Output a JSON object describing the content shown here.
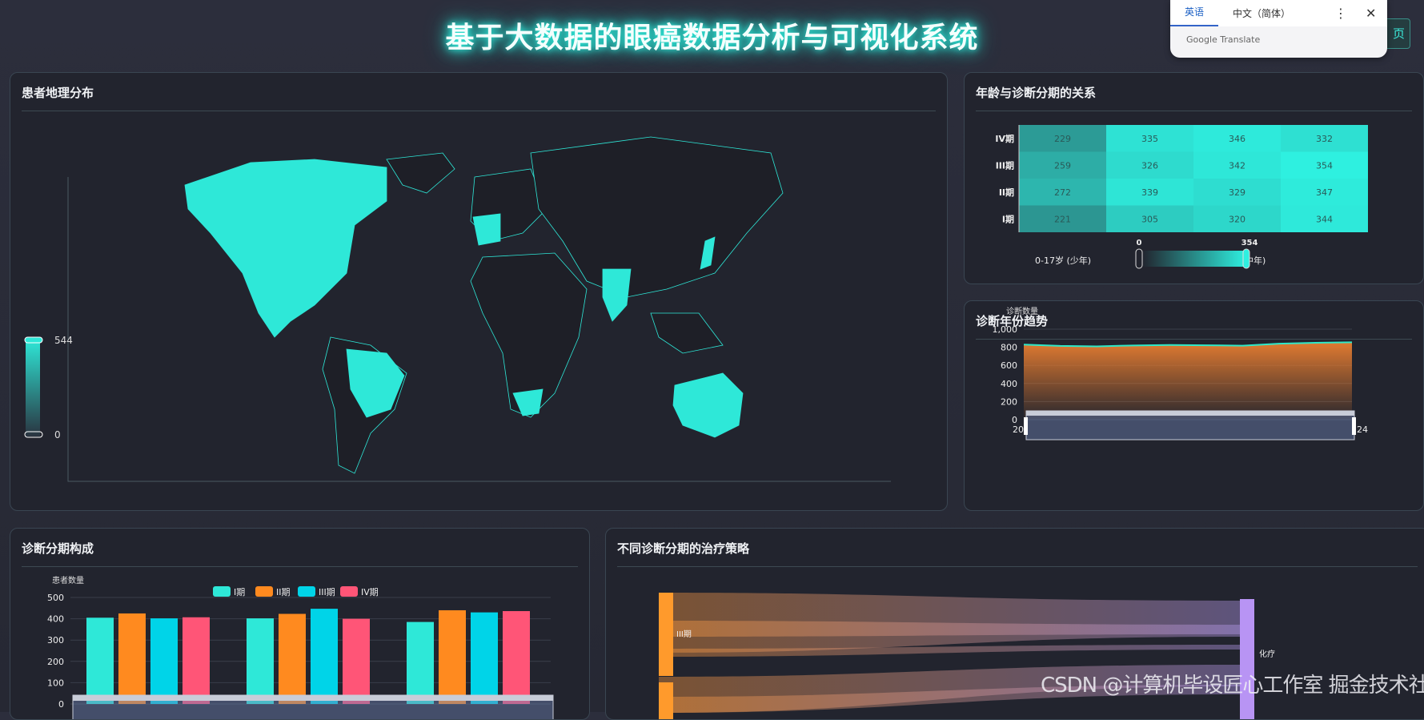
{
  "header": {
    "title": "基于大数据的眼癌数据分析与可视化系统",
    "home_button": "页"
  },
  "translate_popup": {
    "tabs": [
      "英语",
      "中文（简体）"
    ],
    "brand": "Google Translate",
    "more_icon": "more-vert-icon",
    "close_icon": "close-icon"
  },
  "panels": {
    "map": {
      "title": "患者地理分布",
      "visual_map": {
        "max": "544",
        "min": "0"
      },
      "colors": {
        "high": "#2ee8d8",
        "low": "#2a3a44"
      }
    },
    "heatmap": {
      "title": "年龄与诊断分期的关系",
      "y_labels": [
        "IV期",
        "III期",
        "II期",
        "I期"
      ],
      "x_labels_visible": [
        "0-17岁 (少年)",
        "中年)"
      ],
      "visual_map": {
        "min": "0",
        "max": "354"
      }
    },
    "trend": {
      "title": "诊断年份趋势",
      "ylabel": "诊断数量",
      "zoom_start": "20",
      "zoom_end": "24"
    },
    "bars": {
      "title": "诊断分期构成",
      "ylabel": "患者数量"
    },
    "sankey": {
      "title": "不同诊断分期的治疗策略",
      "nodes": [
        "III期",
        "化疗"
      ]
    }
  },
  "chart_data": [
    {
      "type": "heatmap",
      "rows": [
        "IV期",
        "III期",
        "II期",
        "I期"
      ],
      "values": [
        [
          229,
          335,
          346,
          332
        ],
        [
          259,
          326,
          342,
          354
        ],
        [
          272,
          339,
          329,
          347
        ],
        [
          221,
          305,
          320,
          344
        ]
      ],
      "range": [
        0,
        354
      ]
    },
    {
      "type": "area",
      "ylabel": "诊断数量",
      "yticks": [
        "0",
        "200",
        "400",
        "600",
        "800",
        "1,000"
      ],
      "ylim": [
        0,
        1000
      ],
      "values": [
        830,
        815,
        810,
        820,
        825,
        822,
        818,
        840,
        850,
        855
      ],
      "line_color": "#2ee8c8",
      "fill_color": "#e07a30"
    },
    {
      "type": "bar",
      "ylabel": "患者数量",
      "yticks": [
        "0",
        "100",
        "200",
        "300",
        "400",
        "500"
      ],
      "ylim": [
        0,
        500
      ],
      "legend_position": "top",
      "series": [
        {
          "name": "I期",
          "color": "#2ee8d8",
          "values": [
            405,
            402,
            385
          ]
        },
        {
          "name": "II期",
          "color": "#ff8a1f",
          "values": [
            425,
            423,
            440
          ]
        },
        {
          "name": "III期",
          "color": "#00d4e8",
          "values": [
            402,
            447,
            430
          ]
        },
        {
          "name": "IV期",
          "color": "#ff5577",
          "values": [
            407,
            400,
            436
          ]
        }
      ]
    }
  ],
  "watermark": "CSDN @计算机毕设匠心工作室 掘金技术社区"
}
